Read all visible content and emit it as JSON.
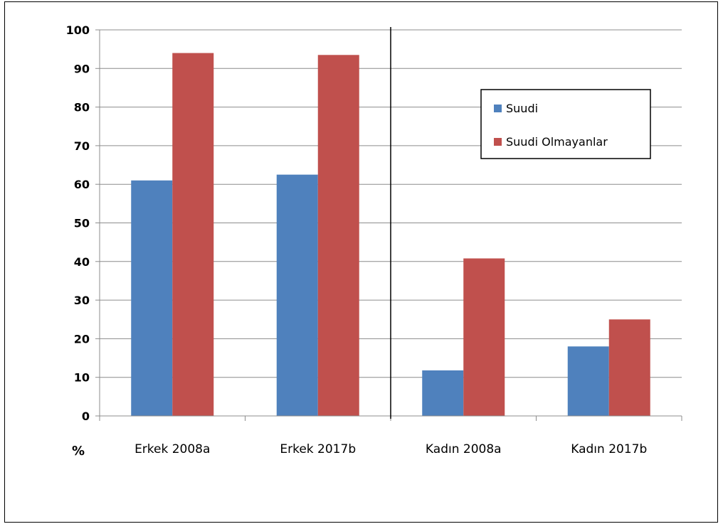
{
  "chart_data": {
    "type": "bar",
    "categories": [
      "Erkek 2008a",
      "Erkek 2017b",
      "Kadın 2008a",
      "Kadın 2017b"
    ],
    "series": [
      {
        "name": "Suudi",
        "values": [
          61,
          62.5,
          11.8,
          18
        ],
        "color": "#4F81BD"
      },
      {
        "name": "Suudi Olmayanlar",
        "values": [
          94,
          93.5,
          40.8,
          25
        ],
        "color": "#C0504D"
      }
    ],
    "ylabel": "%",
    "ylim": [
      0,
      100
    ],
    "yticks": [
      0,
      10,
      20,
      30,
      40,
      50,
      60,
      70,
      80,
      90,
      100
    ],
    "grid": true,
    "legend_position": "top-right",
    "divider_after_category": 2
  }
}
